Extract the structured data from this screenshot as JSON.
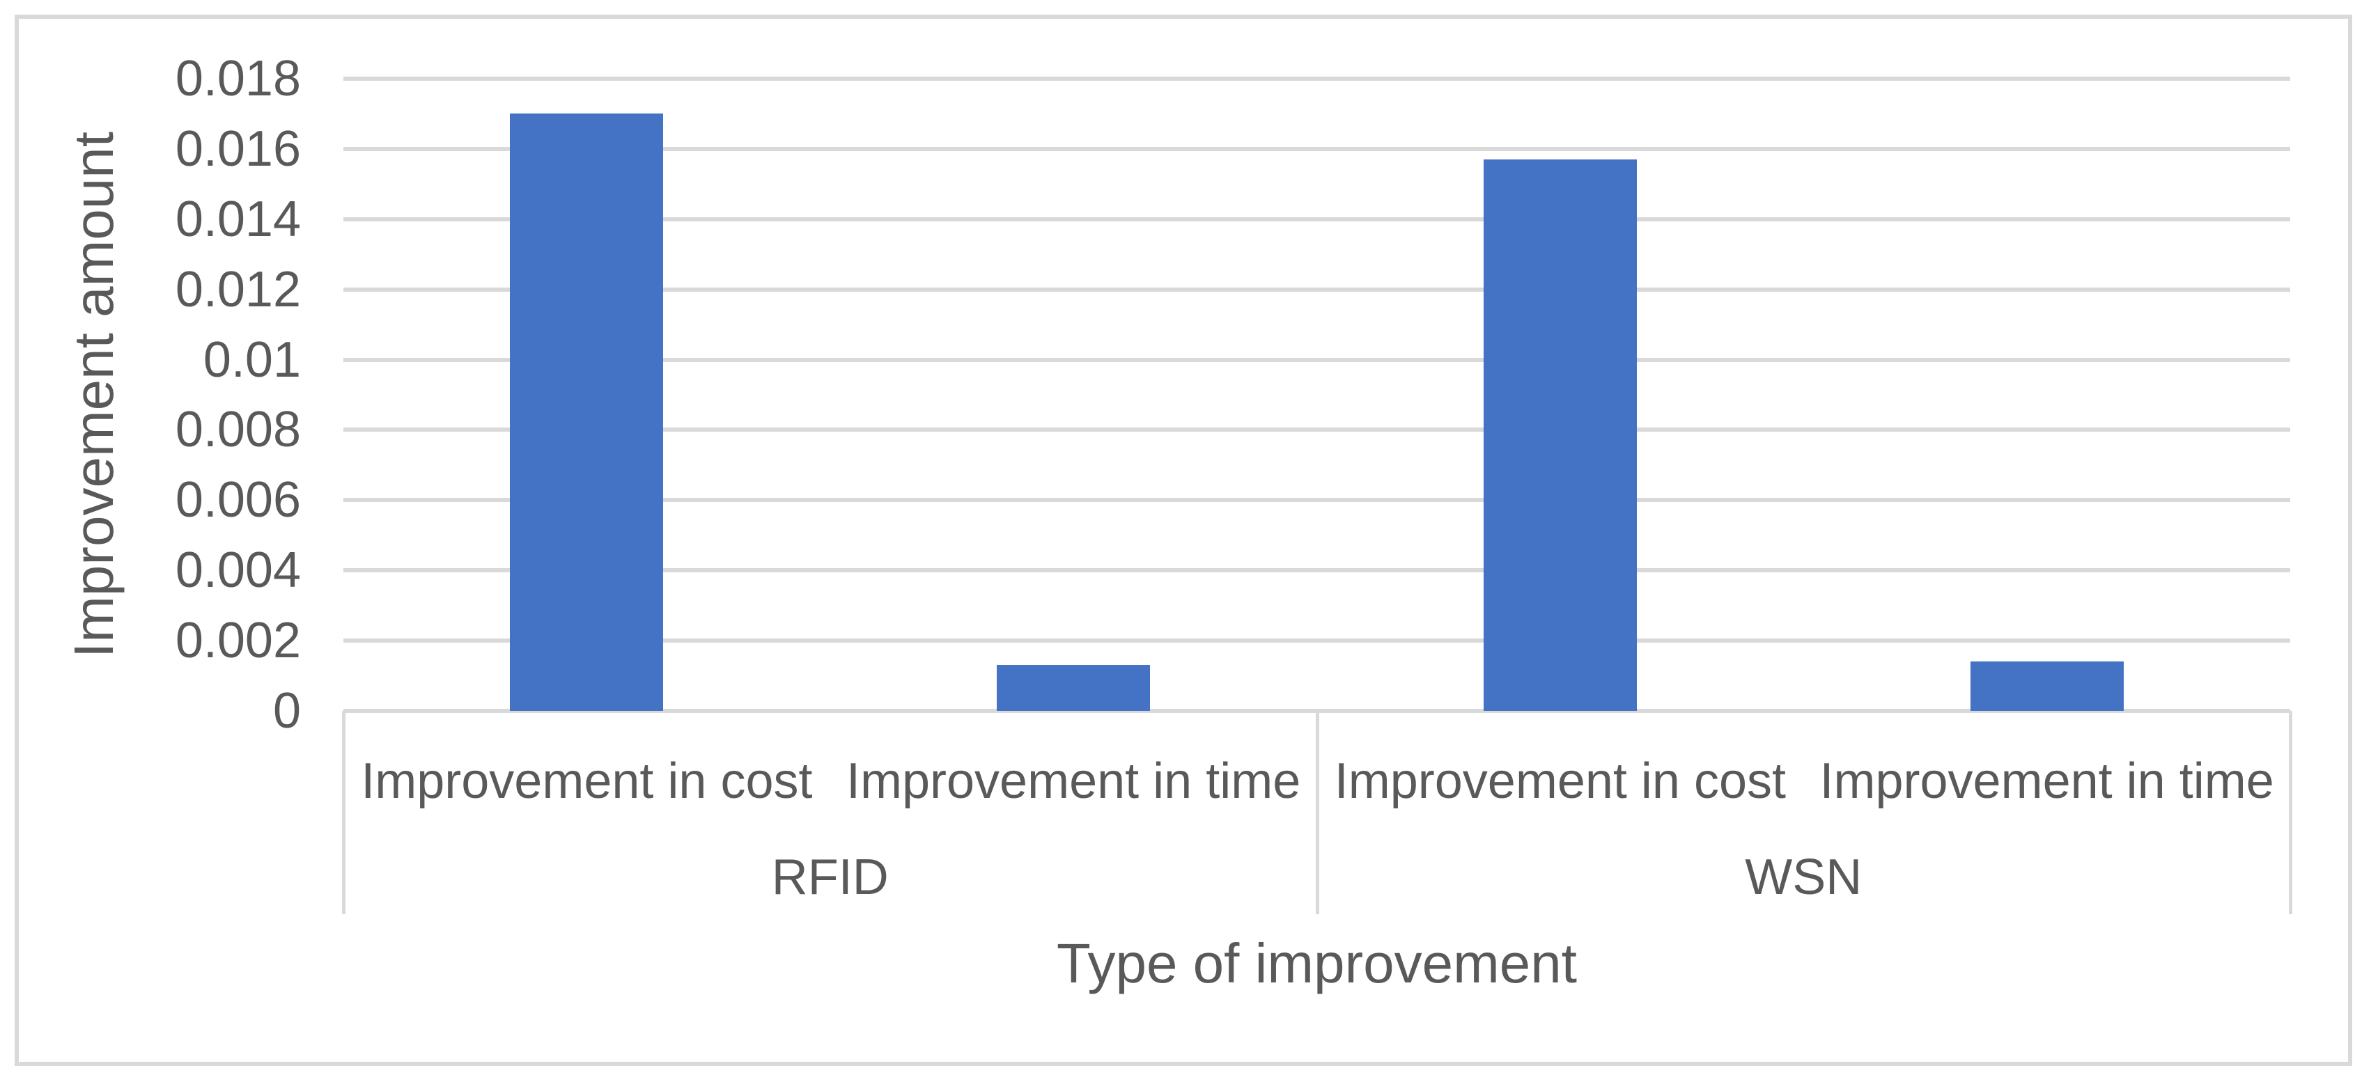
{
  "chart_data": {
    "type": "bar",
    "title": "",
    "xlabel": "Type of improvement",
    "ylabel": "Improvement amount",
    "ylim": [
      0,
      0.018
    ],
    "y_tick_values": [
      0,
      0.002,
      0.004,
      0.006,
      0.008,
      0.01,
      0.012,
      0.014,
      0.016,
      0.018
    ],
    "y_tick_labels": [
      "0",
      "0.002",
      "0.004",
      "0.006",
      "0.008",
      "0.01",
      "0.012",
      "0.014",
      "0.016",
      "0.018"
    ],
    "grid": true,
    "legend": "none",
    "groups": [
      {
        "label": "RFID",
        "categories": [
          "Improvement in cost",
          "Improvement in time"
        ],
        "values": [
          0.017,
          0.0013
        ]
      },
      {
        "label": "WSN",
        "categories": [
          "Improvement in cost",
          "Improvement in time"
        ],
        "values": [
          0.0157,
          0.0014
        ]
      }
    ],
    "colors": {
      "bar": "#4472C4",
      "gridline": "#D9D9D9",
      "axis_line": "#D9D9D9",
      "separator": "#D9D9D9",
      "border": "#D9D9D9",
      "text": "#595959",
      "background": "#FFFFFF"
    }
  }
}
